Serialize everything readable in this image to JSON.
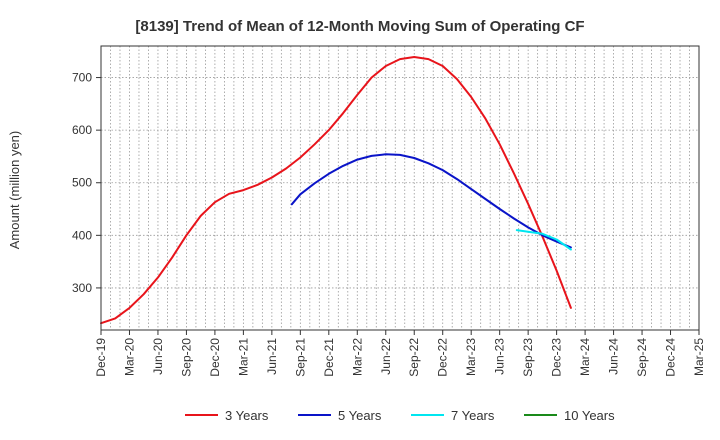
{
  "chart_data": {
    "type": "line",
    "title": "[8139]  Trend of Mean of 12-Month Moving Sum of Operating CF",
    "xlabel": "",
    "ylabel": "Amount (million yen)",
    "ylim": [
      220,
      760
    ],
    "yticks": [
      300,
      400,
      500,
      600,
      700
    ],
    "x_categories": [
      "Dec-19",
      "Mar-20",
      "Jun-20",
      "Sep-20",
      "Dec-20",
      "Mar-21",
      "Jun-21",
      "Sep-21",
      "Dec-21",
      "Mar-22",
      "Jun-22",
      "Sep-22",
      "Dec-22",
      "Mar-23",
      "Jun-23",
      "Sep-23",
      "Dec-23",
      "Mar-24",
      "Jun-24",
      "Sep-24",
      "Dec-24",
      "Mar-25"
    ],
    "grid": true,
    "legend_position": "bottom",
    "series": [
      {
        "name": "3 Years",
        "color": "#e8141b",
        "points": [
          {
            "x": 0,
            "y": 233
          },
          {
            "x": 0.5,
            "y": 242
          },
          {
            "x": 1,
            "y": 262
          },
          {
            "x": 1.5,
            "y": 288
          },
          {
            "x": 2,
            "y": 320
          },
          {
            "x": 2.5,
            "y": 358
          },
          {
            "x": 3,
            "y": 400
          },
          {
            "x": 3.5,
            "y": 437
          },
          {
            "x": 4,
            "y": 463
          },
          {
            "x": 4.5,
            "y": 479
          },
          {
            "x": 5,
            "y": 486
          },
          {
            "x": 5.5,
            "y": 496
          },
          {
            "x": 6,
            "y": 510
          },
          {
            "x": 6.5,
            "y": 527
          },
          {
            "x": 7,
            "y": 548
          },
          {
            "x": 7.5,
            "y": 573
          },
          {
            "x": 8,
            "y": 600
          },
          {
            "x": 8.5,
            "y": 632
          },
          {
            "x": 9,
            "y": 667
          },
          {
            "x": 9.5,
            "y": 700
          },
          {
            "x": 10,
            "y": 722
          },
          {
            "x": 10.5,
            "y": 735
          },
          {
            "x": 11,
            "y": 739
          },
          {
            "x": 11.5,
            "y": 735
          },
          {
            "x": 12,
            "y": 722
          },
          {
            "x": 12.5,
            "y": 697
          },
          {
            "x": 13,
            "y": 663
          },
          {
            "x": 13.5,
            "y": 622
          },
          {
            "x": 14,
            "y": 573
          },
          {
            "x": 14.5,
            "y": 518
          },
          {
            "x": 15,
            "y": 460
          },
          {
            "x": 15.5,
            "y": 398
          },
          {
            "x": 16,
            "y": 333
          },
          {
            "x": 16.5,
            "y": 262
          }
        ]
      },
      {
        "name": "5 Years",
        "color": "#0a14c8",
        "points": [
          {
            "x": 6.7,
            "y": 459
          },
          {
            "x": 7,
            "y": 478
          },
          {
            "x": 7.5,
            "y": 499
          },
          {
            "x": 8,
            "y": 517
          },
          {
            "x": 8.5,
            "y": 532
          },
          {
            "x": 9,
            "y": 544
          },
          {
            "x": 9.5,
            "y": 551
          },
          {
            "x": 10,
            "y": 554
          },
          {
            "x": 10.5,
            "y": 553
          },
          {
            "x": 11,
            "y": 547
          },
          {
            "x": 11.5,
            "y": 537
          },
          {
            "x": 12,
            "y": 524
          },
          {
            "x": 12.5,
            "y": 507
          },
          {
            "x": 13,
            "y": 488
          },
          {
            "x": 13.5,
            "y": 469
          },
          {
            "x": 14,
            "y": 450
          },
          {
            "x": 14.5,
            "y": 432
          },
          {
            "x": 15,
            "y": 415
          },
          {
            "x": 15.5,
            "y": 400
          },
          {
            "x": 16,
            "y": 388
          },
          {
            "x": 16.5,
            "y": 377
          }
        ]
      },
      {
        "name": "7 Years",
        "color": "#00e6f0",
        "points": [
          {
            "x": 14.6,
            "y": 410
          },
          {
            "x": 15,
            "y": 407
          },
          {
            "x": 15.5,
            "y": 403
          },
          {
            "x": 16,
            "y": 392
          },
          {
            "x": 16.5,
            "y": 373
          }
        ]
      },
      {
        "name": "10 Years",
        "color": "#1a8a1a",
        "points": []
      }
    ]
  }
}
